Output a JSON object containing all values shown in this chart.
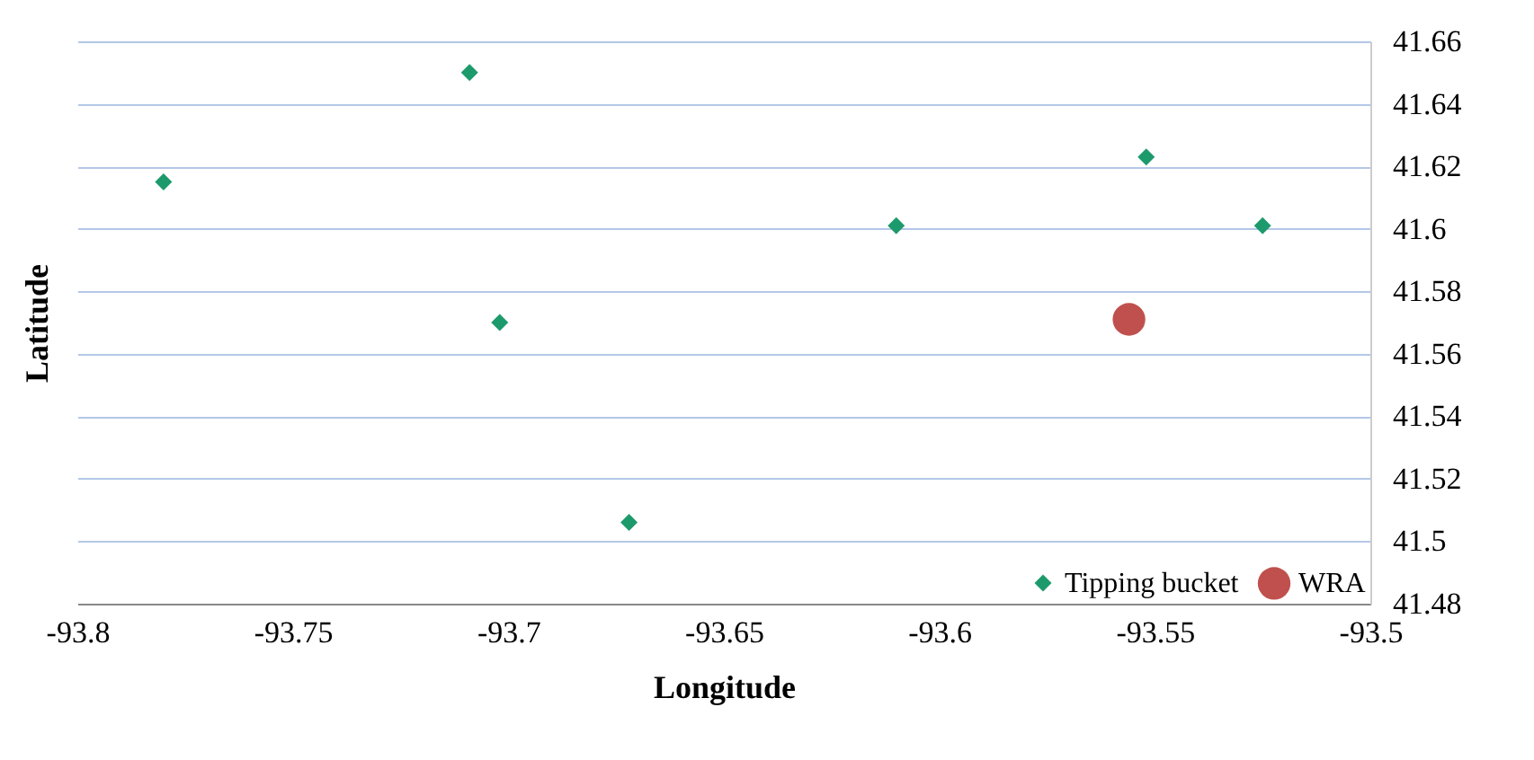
{
  "chart_data": {
    "type": "scatter",
    "xlabel": "Longitude",
    "ylabel": "Latitude",
    "xlim": [
      -93.8,
      -93.5
    ],
    "xticks": [
      -93.8,
      -93.75,
      -93.7,
      -93.65,
      -93.6,
      -93.55,
      -93.5
    ],
    "ylim": [
      41.48,
      41.66
    ],
    "yticks": [
      41.48,
      41.5,
      41.52,
      41.54,
      41.56,
      41.58,
      41.6,
      41.62,
      41.64,
      41.66
    ],
    "grid": "y",
    "legend": "bottom right",
    "series": [
      {
        "name": "Tipping bucket",
        "color": "#1d9a6c",
        "marker": "diamond",
        "x": [
          -93.78,
          -93.709,
          -93.702,
          -93.672,
          -93.61,
          -93.552,
          -93.525
        ],
        "values": [
          41.615,
          41.65,
          41.57,
          41.506,
          41.601,
          41.623,
          41.601
        ]
      },
      {
        "name": "WRA",
        "color": "#c0504d",
        "marker": "circle",
        "x": [
          -93.556
        ],
        "values": [
          41.571
        ]
      }
    ]
  }
}
